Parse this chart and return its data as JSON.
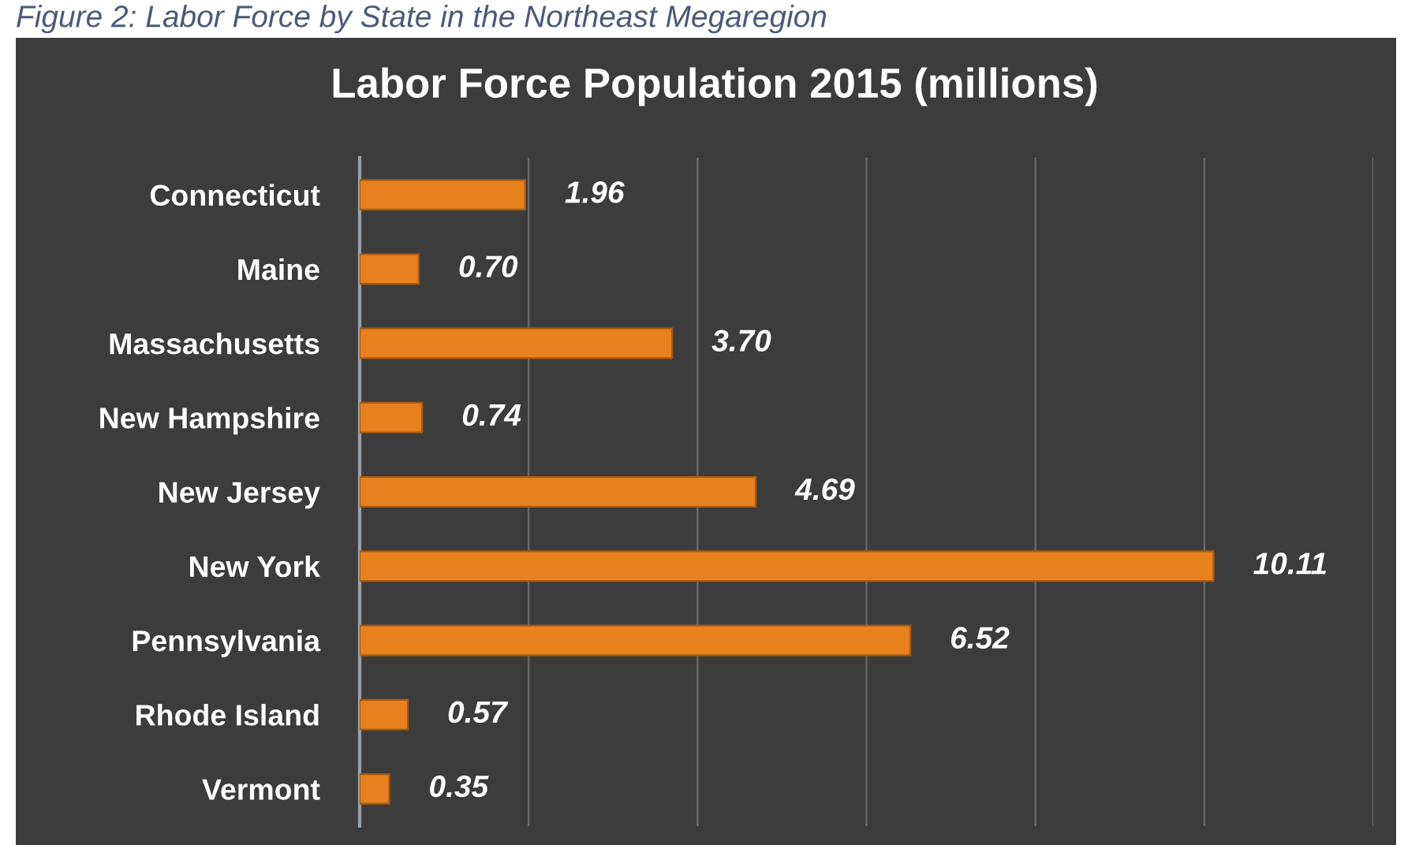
{
  "chart_data": {
    "type": "bar",
    "orientation": "horizontal",
    "title": "Labor Force Population 2015 (millions)",
    "annotations": [
      "Figure 2: Labor Force by State in the Northeast Megaregion"
    ],
    "categories": [
      "Connecticut",
      "Maine",
      "Massachusetts",
      "New Hampshire",
      "New Jersey",
      "New York",
      "Pennsylvania",
      "Rhode Island",
      "Vermont"
    ],
    "values": [
      1.96,
      0.7,
      3.7,
      0.74,
      4.69,
      10.11,
      6.52,
      0.57,
      0.35
    ],
    "value_labels": [
      "1.96",
      "0.70",
      "3.70",
      "0.74",
      "4.69",
      "10.11",
      "6.52",
      "0.57",
      "0.35"
    ],
    "color": "#e8801e",
    "xlim": [
      0,
      12
    ],
    "xticks": [
      {
        "value": 0,
        "label": null
      },
      {
        "value": 2,
        "label": null
      },
      {
        "value": 4,
        "label": null
      },
      {
        "value": 6,
        "label": null
      },
      {
        "value": 8,
        "label": null
      },
      {
        "value": 10,
        "label": null
      },
      {
        "value": 12,
        "label": null
      }
    ],
    "grid": "x",
    "tick_labels": "y",
    "legend": false
  }
}
